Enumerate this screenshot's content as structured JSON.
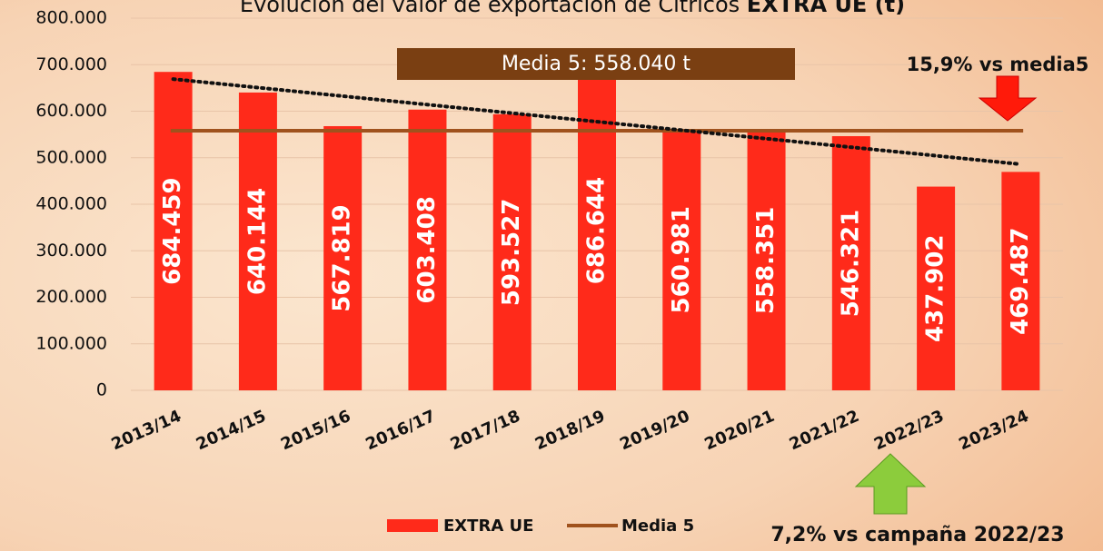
{
  "chart_data": {
    "type": "bar",
    "title": "Evolución del valor de exportación de Cítricos",
    "title_bold": "EXTRA UE (t)",
    "categories": [
      "2013/14",
      "2014/15",
      "2015/16",
      "2016/17",
      "2017/18",
      "2018/19",
      "2019/20",
      "2020/21",
      "2021/22",
      "2022/23",
      "2023/24"
    ],
    "series": [
      {
        "name": "EXTRA UE",
        "color": "#ff2a1a",
        "values": [
          684459,
          640144,
          567819,
          603408,
          593527,
          686644,
          560981,
          558351,
          546321,
          437902,
          469487
        ],
        "value_labels": [
          "684.459",
          "640.144",
          "567.819",
          "603.408",
          "593.527",
          "686.644",
          "560.981",
          "558.351",
          "546.321",
          "437.902",
          "469.487"
        ]
      }
    ],
    "average": {
      "name": "Media 5",
      "color": "#a0521d",
      "value": 558040,
      "label": "Media 5: 558.040 t"
    },
    "trendline": [
      669000,
      486000
    ],
    "ylim": [
      0,
      800000
    ],
    "yticks": [
      0,
      {
        "value": 100000,
        "label": "100.000"
      },
      {
        "value": 200000,
        "label": "200.000"
      },
      {
        "value": 300000,
        "label": "300.000"
      },
      {
        "value": 400000,
        "label": "400.000"
      },
      {
        "value": 500000,
        "label": "500.000"
      },
      {
        "value": 600000,
        "label": "600.000"
      },
      {
        "value": 700000,
        "label": "700.000"
      },
      {
        "value": 800000,
        "label": "800.000"
      }
    ],
    "grid": true,
    "annotations": [
      "15,9% vs media5",
      "7,2% vs campaña 2022/23"
    ]
  }
}
